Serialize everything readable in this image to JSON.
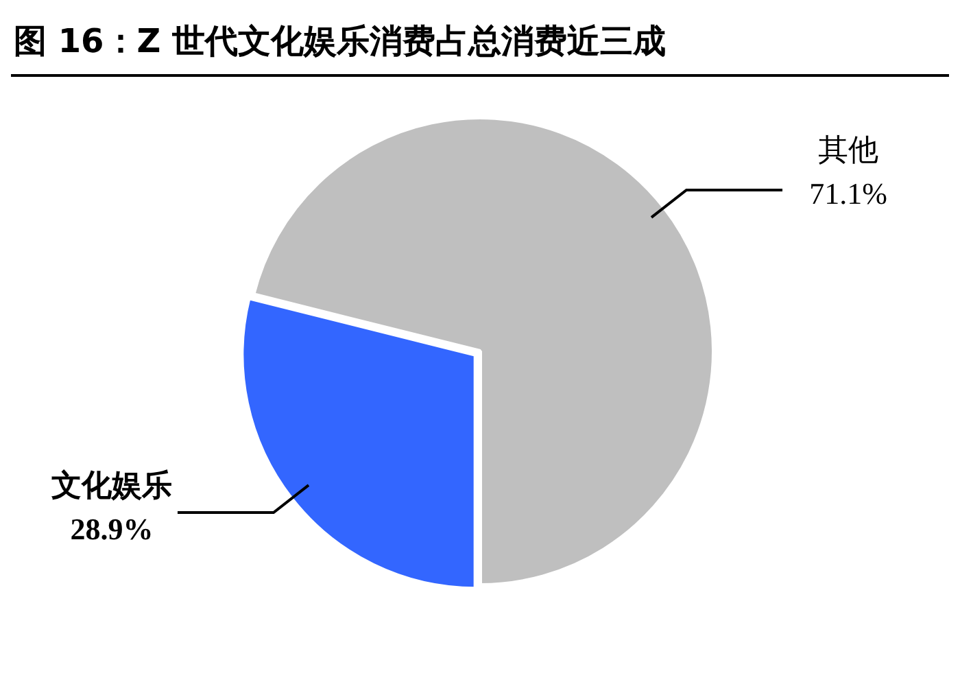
{
  "chart_data": {
    "type": "pie",
    "title": "图 16：Z 世代文化娱乐消费占总消费近三成",
    "categories": [
      "其他",
      "文化娱乐"
    ],
    "values": [
      71.1,
      28.9
    ],
    "colors": [
      "#bfbfbf",
      "#3366ff"
    ],
    "value_labels": [
      "71.1%",
      "28.9%"
    ],
    "legend": false
  }
}
